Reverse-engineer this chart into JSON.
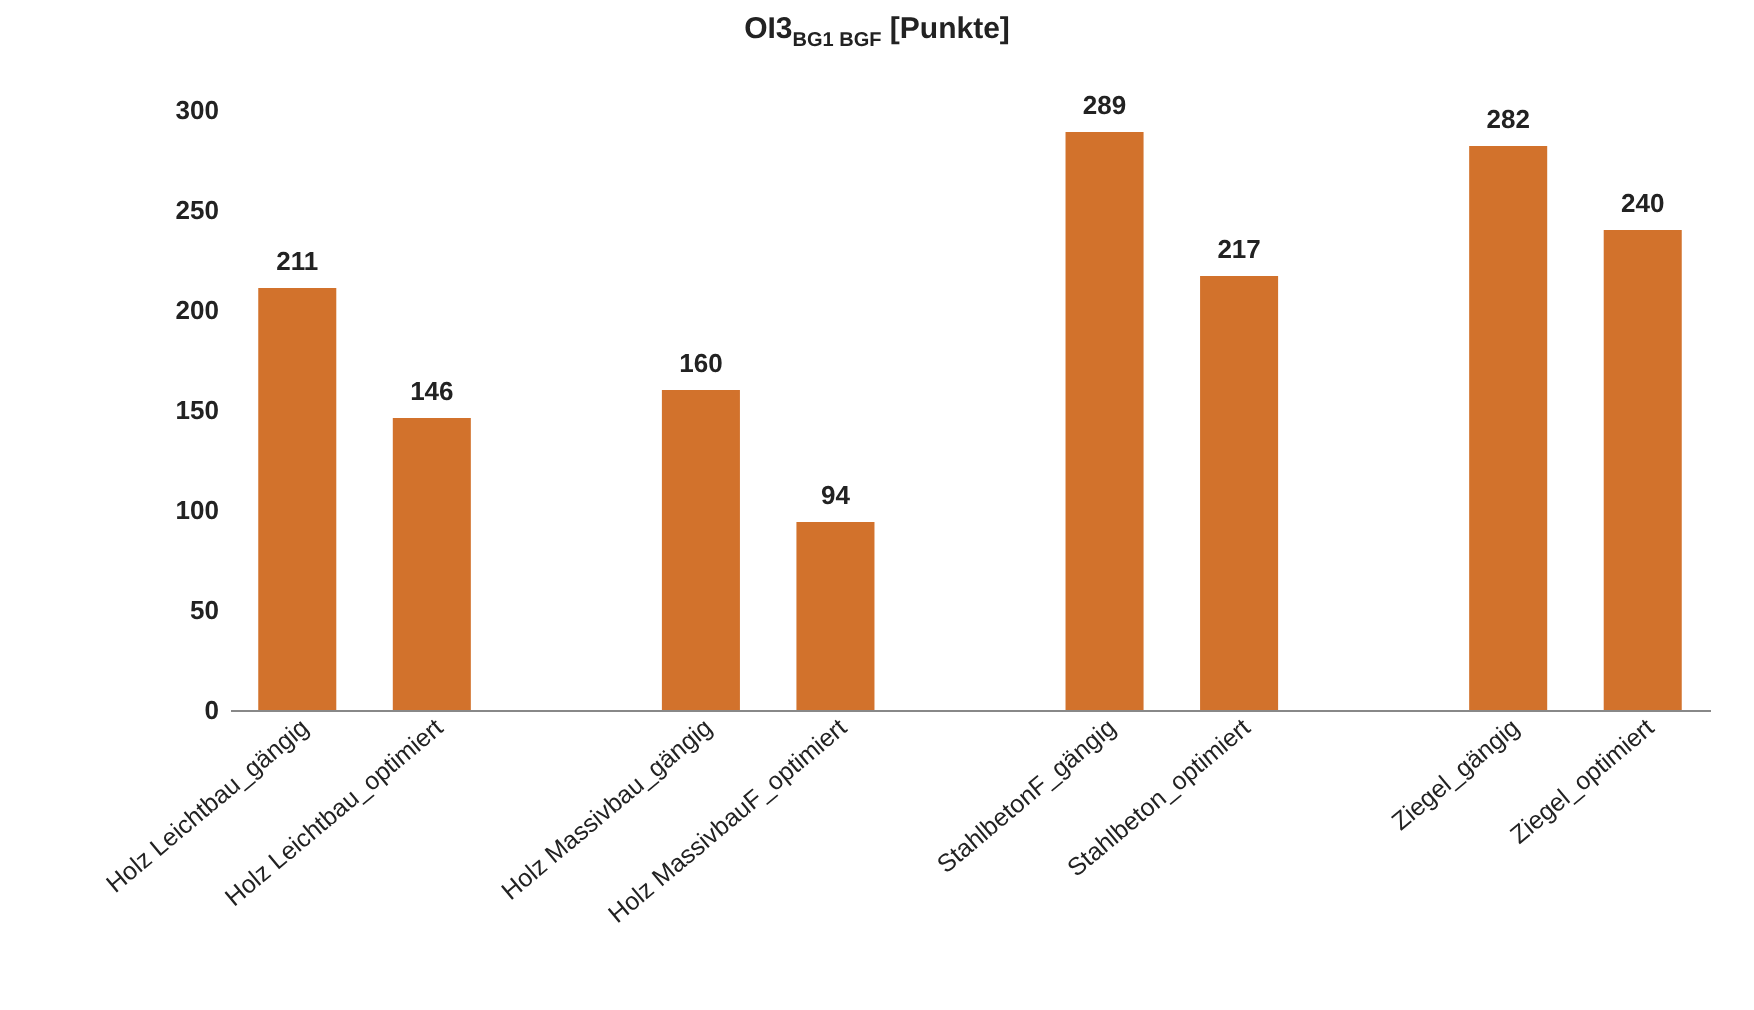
{
  "chart_data": {
    "type": "bar",
    "title": "OI3$_{BG1 BGF}$ [Punkte]",
    "categories": [
      "Holz Leichtbau_gängig",
      "Holz Leichtbau_optimiert",
      null,
      "Holz Massivbau_gängig",
      "Holz MassivbauF_optimiert",
      null,
      "StahlbetonF_gängig",
      "Stahlbeton_optimiert",
      null,
      "Ziegel_gängig",
      "Ziegel_optimiert"
    ],
    "values": [
      211,
      146,
      null,
      160,
      94,
      null,
      289,
      217,
      null,
      282,
      240
    ],
    "color": "#d2722c",
    "ylim": [
      0,
      300
    ],
    "yticks": [
      0,
      50,
      100,
      150,
      200,
      250,
      300
    ],
    "grid": false,
    "data_labels": true
  }
}
